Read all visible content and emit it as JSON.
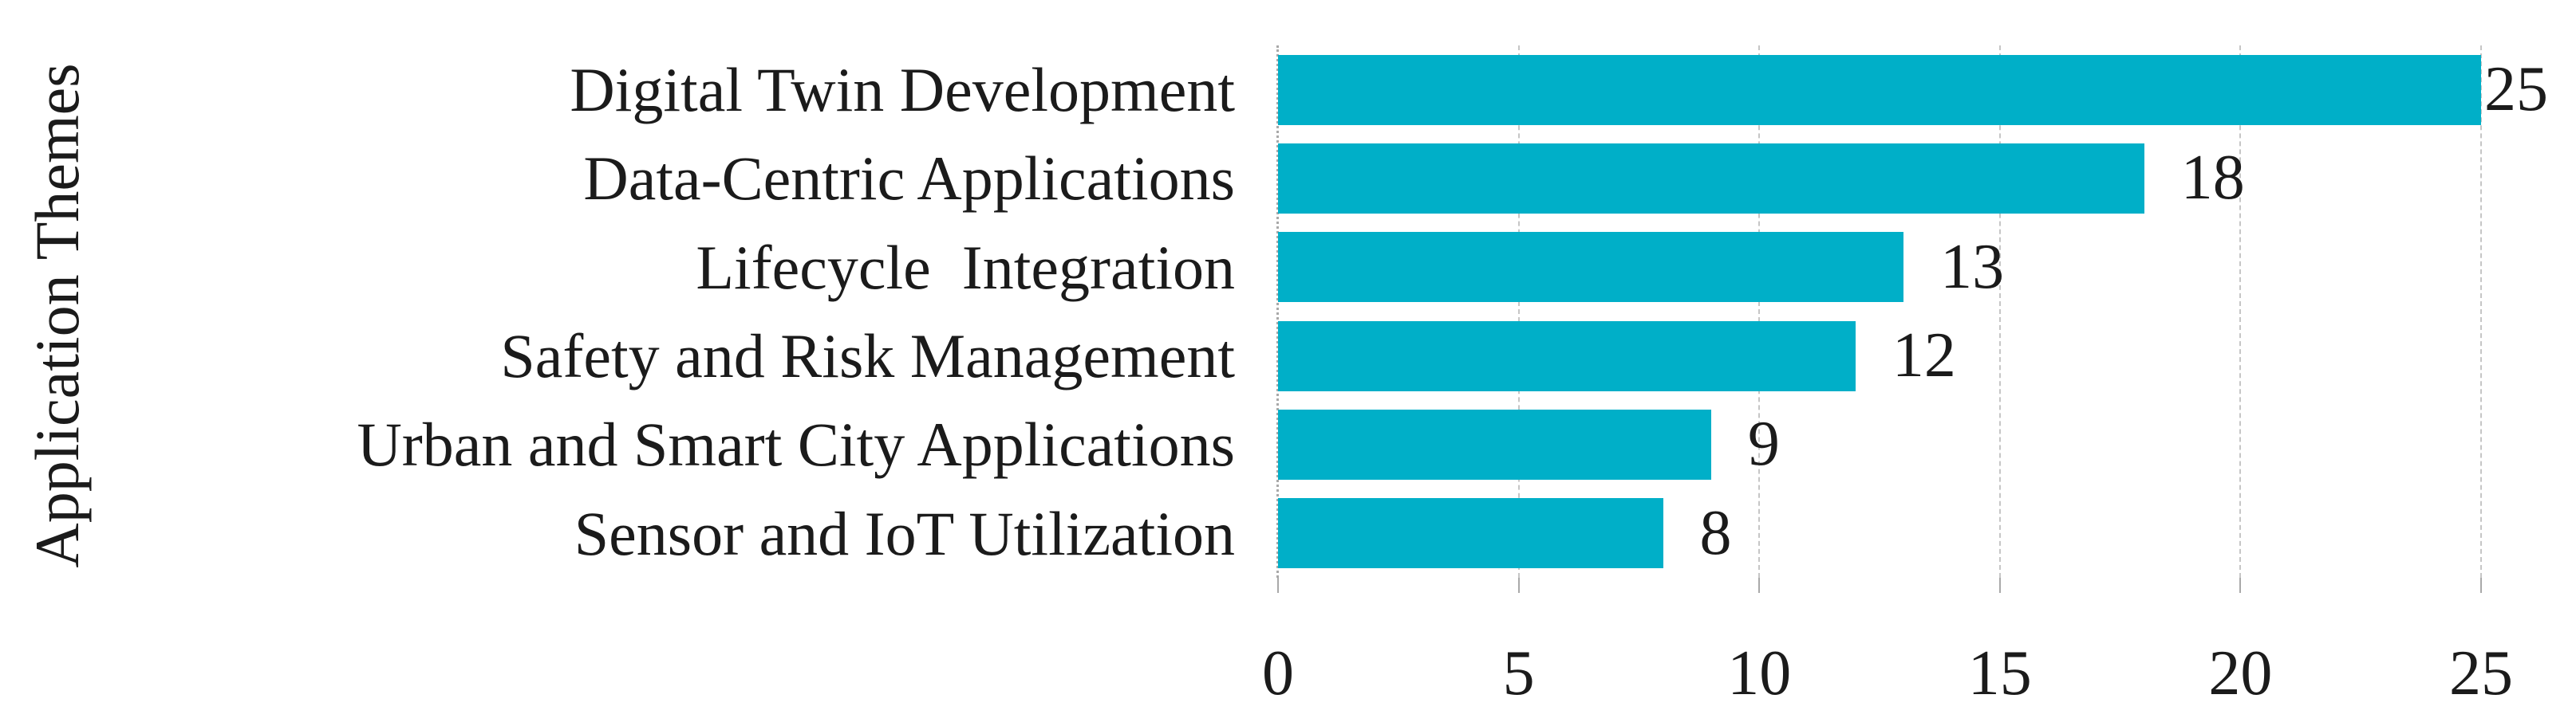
{
  "figure": {
    "background_color": "#ffffff",
    "text_color": "#1b1b1b"
  },
  "chart_data": {
    "type": "bar",
    "orientation": "horizontal",
    "title": "",
    "xlabel": "",
    "ylabel": "Application Themes",
    "categories": [
      "Digital Twin Development",
      "Data-Centric Applications",
      "Lifecycle  Integration",
      "Safety and Risk Management",
      "Urban and Smart City Applications",
      "Sensor and IoT Utilization"
    ],
    "values": [
      25,
      18,
      13,
      12,
      9,
      8
    ],
    "data_labels": [
      "25",
      "18",
      "13",
      "12",
      "9",
      "8"
    ],
    "data_labels_position": "outside-end",
    "xlim": [
      0,
      25
    ],
    "xticks": [
      0,
      5,
      10,
      15,
      20,
      25
    ],
    "xtick_labels": [
      "0",
      "5",
      "10",
      "15",
      "20",
      "25"
    ],
    "grid": "vertical-dashed",
    "legend": "none",
    "bar_color": "#00afc8",
    "gridline_color": "#c6c6c6",
    "axis_line_color": "#a9a9a9"
  }
}
